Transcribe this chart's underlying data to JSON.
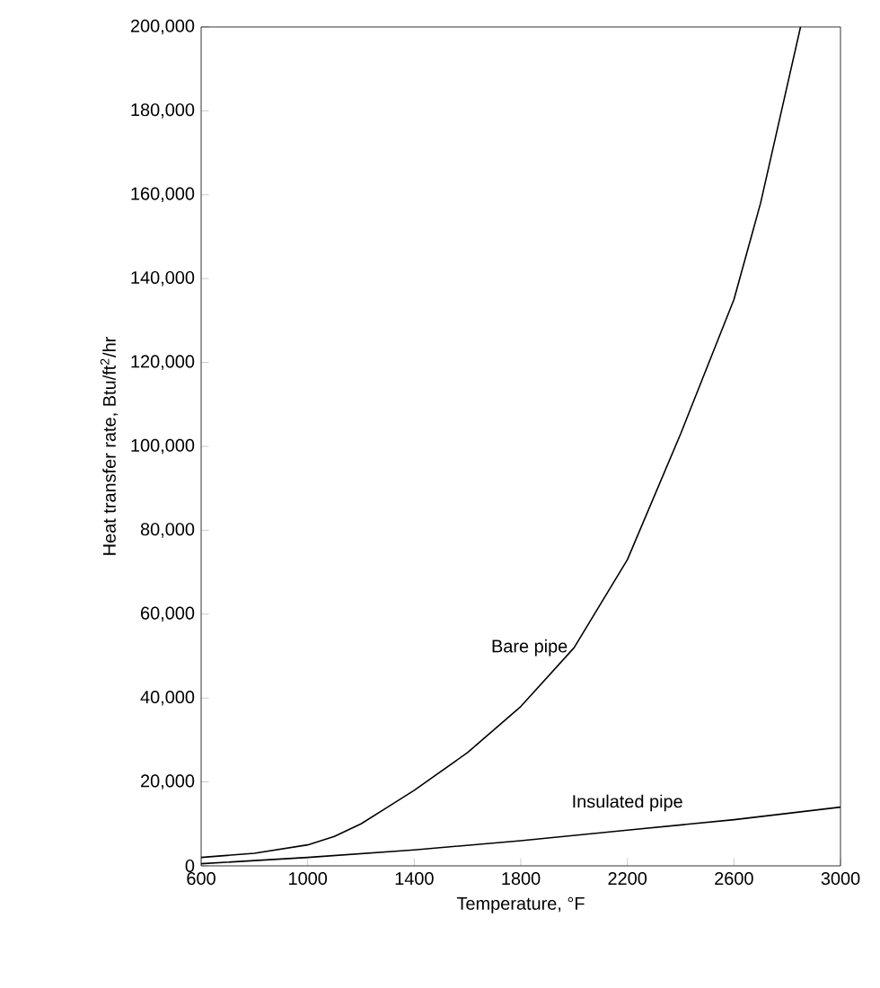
{
  "chart_data": {
    "type": "line",
    "xlabel": "Temperature, °F",
    "ylabel": "Heat transfer rate, Btu/ft$^{2}$/hr",
    "series": [
      {
        "name": "Bare pipe",
        "color": "#000000",
        "x": [
          600,
          800,
          1000,
          1100,
          1200,
          1300,
          1400,
          1600,
          1800,
          2000,
          2200,
          2400,
          2600,
          2700,
          2800,
          2850
        ],
        "values": [
          2000,
          3000,
          5000,
          7000,
          10000,
          14000,
          18000,
          27000,
          38000,
          52000,
          73000,
          103000,
          135000,
          158000,
          186000,
          200000
        ]
      },
      {
        "name": "Insulated pipe",
        "color": "#000000",
        "x": [
          600,
          1000,
          1400,
          1800,
          2200,
          2600,
          3000
        ],
        "values": [
          500,
          2000,
          3800,
          6000,
          8500,
          11000,
          14000
        ]
      }
    ],
    "xlim": [
      600,
      3000
    ],
    "ylim": [
      0,
      200000
    ],
    "xticks": [
      600,
      1000,
      1400,
      1800,
      2200,
      2600,
      3000
    ],
    "yticks": [
      0,
      {
        "value": 20000,
        "label": "20,000"
      },
      {
        "value": 40000,
        "label": "40,000"
      },
      {
        "value": 60000,
        "label": "60,000"
      },
      {
        "value": 80000,
        "label": "80,000"
      },
      {
        "value": 100000,
        "label": "100,000"
      },
      {
        "value": 120000,
        "label": "120,000"
      },
      {
        "value": 140000,
        "label": "140,000"
      },
      {
        "value": 160000,
        "label": "160,000"
      },
      {
        "value": 180000,
        "label": "180,000"
      },
      {
        "value": 200000,
        "label": "200,000"
      }
    ],
    "grid": false,
    "legend": false,
    "marker": "none",
    "line_style": "solid"
  }
}
